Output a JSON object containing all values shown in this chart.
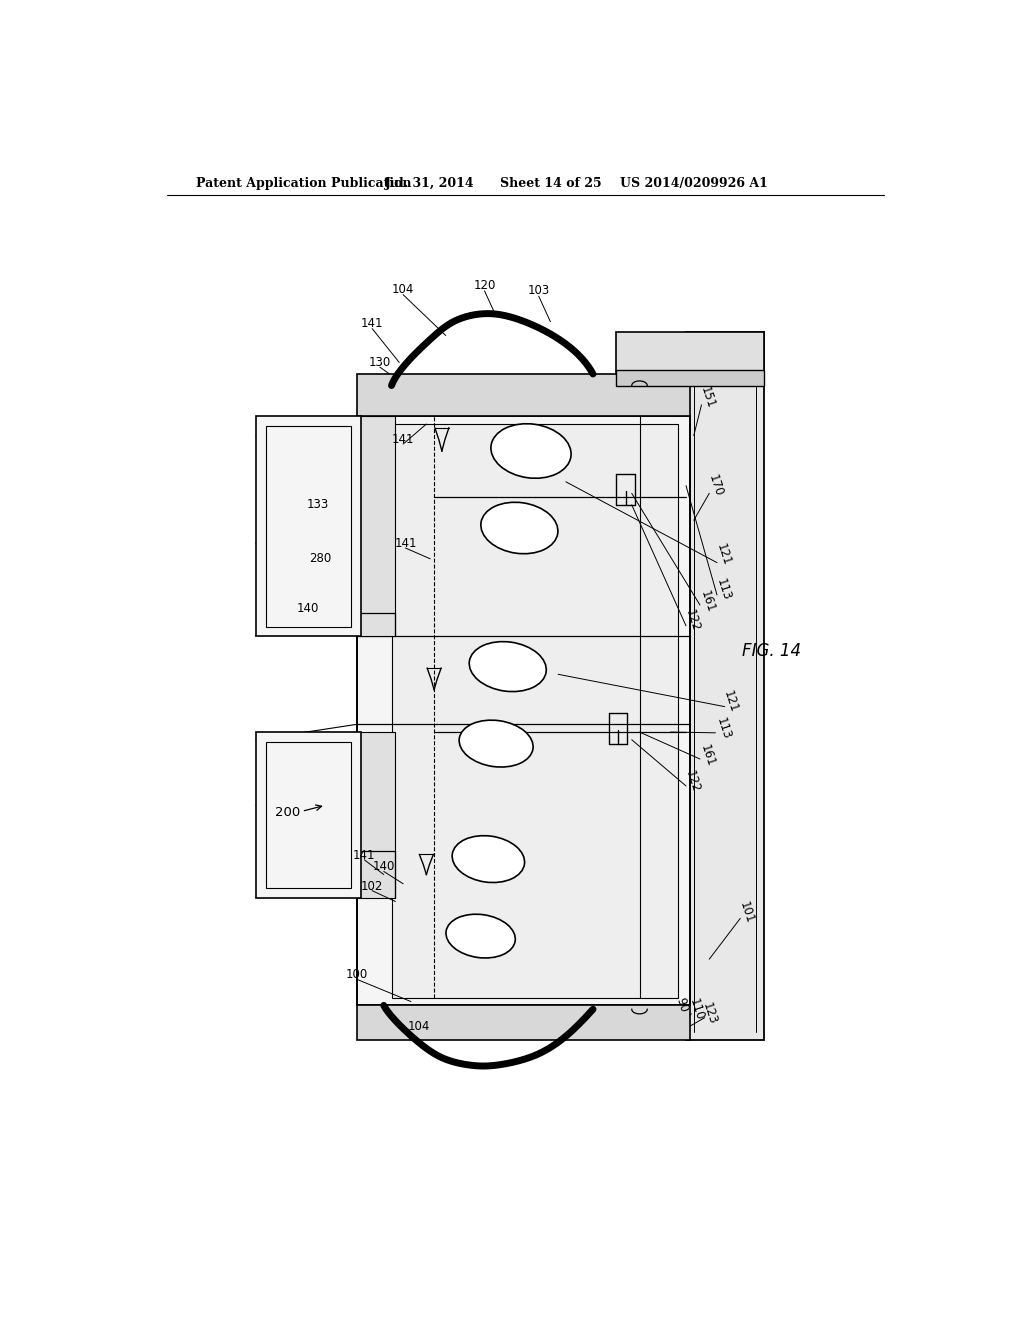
{
  "background_color": "#ffffff",
  "header_text": "Patent Application Publication",
  "header_date": "Jul. 31, 2014",
  "header_sheet": "Sheet 14 of 25",
  "header_patent": "US 2014/0209926 A1",
  "fig_label": "FIG. 14",
  "line_color": "#000000",
  "label_fontsize": 8.5,
  "header_fontsize": 9
}
